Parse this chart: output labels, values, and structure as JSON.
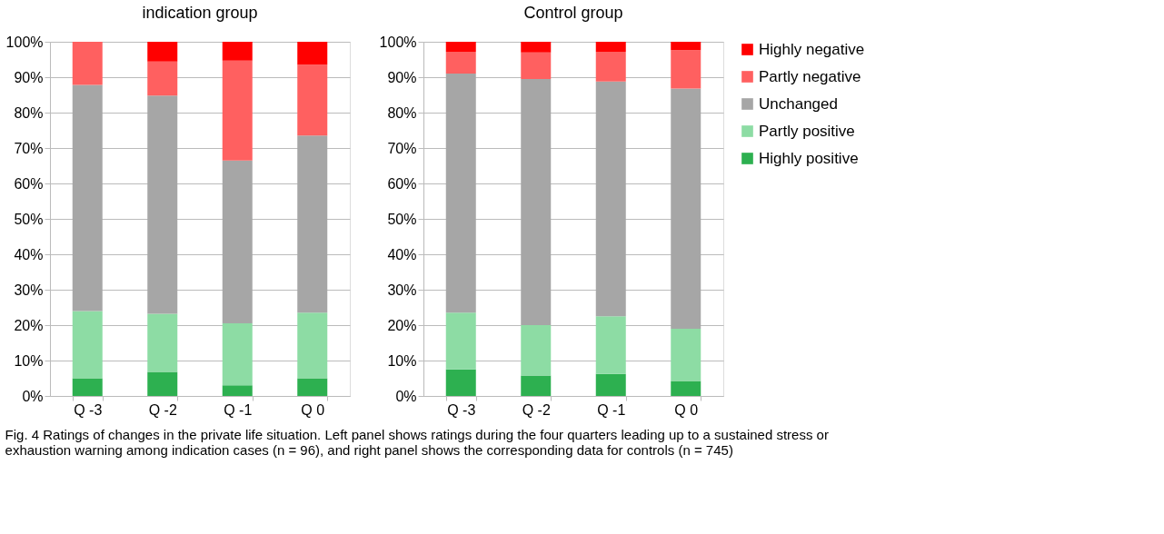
{
  "chart_data": [
    {
      "type": "bar",
      "stacked": true,
      "title": "indication group",
      "categories": [
        "Q -3",
        "Q -2",
        "Q -1",
        "Q 0"
      ],
      "series": [
        {
          "color": "#2db050",
          "values": [
            5.0,
            6.8,
            3.0,
            5.0
          ]
        },
        {
          "color": "#8ddca4",
          "values": [
            19.0,
            16.4,
            17.5,
            18.5
          ]
        },
        {
          "color": "#a6a6a6",
          "values": [
            63.8,
            61.6,
            46.0,
            50.0
          ]
        },
        {
          "color": "#ff6060",
          "values": [
            12.2,
            9.6,
            28.2,
            20.0
          ]
        },
        {
          "color": "#ff0000",
          "values": [
            0.0,
            5.6,
            5.3,
            6.5
          ]
        }
      ],
      "ylim": [
        0,
        100
      ],
      "yticks": [
        {
          "value": 0,
          "label": "0%"
        },
        {
          "value": 10,
          "label": "10%"
        },
        {
          "value": 20,
          "label": "20%"
        },
        {
          "value": 30,
          "label": "30%"
        },
        {
          "value": 40,
          "label": "40%"
        },
        {
          "value": 50,
          "label": "50%"
        },
        {
          "value": 60,
          "label": "60%"
        },
        {
          "value": 70,
          "label": "70%"
        },
        {
          "value": 80,
          "label": "80%"
        },
        {
          "value": 90,
          "label": "90%"
        },
        {
          "value": 100,
          "label": "100%"
        }
      ],
      "grid": "y",
      "legend": false,
      "annotations": [
        "Fig. 4 Ratings of changes in the private life situation. Left panel shows ratings during the four quarters leading up to a sustained stress or exhaustion warning among indication cases (n = 96), and right panel shows the corresponding data for controls (n = 745)"
      ]
    },
    {
      "type": "bar",
      "stacked": true,
      "title": "Control group",
      "categories": [
        "Q -3",
        "Q -2",
        "Q -1",
        "Q 0"
      ],
      "series": [
        {
          "name": "Highly positive",
          "color": "#2db050",
          "values": [
            7.5,
            5.8,
            6.2,
            4.2
          ]
        },
        {
          "name": "Partly positive",
          "color": "#8ddca4",
          "values": [
            16.0,
            14.2,
            16.3,
            14.8
          ]
        },
        {
          "name": "Unchanged",
          "color": "#a6a6a6",
          "values": [
            67.5,
            69.5,
            66.3,
            67.8
          ]
        },
        {
          "name": "Partly negative",
          "color": "#ff6060",
          "values": [
            6.2,
            7.5,
            8.4,
            10.8
          ]
        },
        {
          "name": "Highly negative",
          "color": "#ff0000",
          "values": [
            2.8,
            3.0,
            2.8,
            2.4
          ]
        }
      ],
      "ylim": [
        0,
        100
      ],
      "yticks": [
        {
          "value": 0,
          "label": "0%"
        },
        {
          "value": 10,
          "label": "10%"
        },
        {
          "value": 20,
          "label": "20%"
        },
        {
          "value": 30,
          "label": "30%"
        },
        {
          "value": 40,
          "label": "40%"
        },
        {
          "value": 50,
          "label": "50%"
        },
        {
          "value": 60,
          "label": "60%"
        },
        {
          "value": 70,
          "label": "70%"
        },
        {
          "value": 80,
          "label": "80%"
        },
        {
          "value": 90,
          "label": "90%"
        },
        {
          "value": 100,
          "label": "100%"
        }
      ],
      "grid": "y",
      "legend": "right"
    }
  ]
}
